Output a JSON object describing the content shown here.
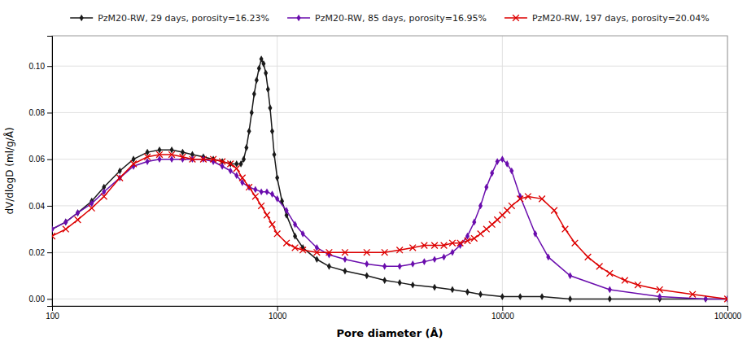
{
  "chart_data": {
    "type": "line",
    "xlabel": "Pore diameter  (Å)",
    "ylabel": "dV/dlogD  (ml/g/Å)",
    "log": "x",
    "grid": true,
    "legend": "top",
    "xlim": [
      100,
      100000
    ],
    "ylim": [
      -0.003,
      0.113
    ],
    "xticks": [
      100,
      1000,
      10000,
      100000
    ],
    "yticks": [
      {
        "value": 0.0,
        "label": "0.00"
      },
      {
        "value": 0.02,
        "label": "0.02"
      },
      {
        "value": 0.04,
        "label": "0.04"
      },
      {
        "value": 0.06,
        "label": "0.06"
      },
      {
        "value": 0.08,
        "label": "0.08"
      },
      {
        "value": 0.1,
        "label": "0.10"
      }
    ],
    "series": [
      {
        "name": "PzM20-RW, 29 days, porosity=16.23%",
        "color": "#1a1a1a",
        "marker": "diamond",
        "x": [
          100,
          115,
          130,
          150,
          170,
          200,
          230,
          265,
          300,
          340,
          380,
          420,
          470,
          520,
          570,
          620,
          660,
          690,
          710,
          730,
          750,
          770,
          790,
          810,
          830,
          850,
          870,
          890,
          910,
          930,
          950,
          970,
          1000,
          1050,
          1100,
          1200,
          1300,
          1500,
          1700,
          2000,
          2500,
          3000,
          3500,
          4000,
          5000,
          6000,
          7000,
          8000,
          10000,
          12000,
          15000,
          20000,
          30000,
          50000,
          80000,
          100000
        ],
        "values": [
          0.03,
          0.033,
          0.037,
          0.042,
          0.048,
          0.055,
          0.06,
          0.063,
          0.064,
          0.064,
          0.063,
          0.062,
          0.061,
          0.06,
          0.059,
          0.058,
          0.058,
          0.058,
          0.06,
          0.065,
          0.072,
          0.08,
          0.088,
          0.094,
          0.099,
          0.103,
          0.101,
          0.097,
          0.09,
          0.082,
          0.072,
          0.062,
          0.052,
          0.042,
          0.036,
          0.027,
          0.022,
          0.017,
          0.014,
          0.012,
          0.01,
          0.008,
          0.007,
          0.006,
          0.005,
          0.004,
          0.003,
          0.002,
          0.001,
          0.001,
          0.001,
          0.0,
          0.0,
          0.0,
          0.0,
          0.0
        ]
      },
      {
        "name": "PzM20-RW, 85 days, porosity=16.95%",
        "color": "#6A0DAD",
        "marker": "diamond",
        "x": [
          100,
          115,
          130,
          150,
          170,
          200,
          230,
          265,
          300,
          340,
          380,
          420,
          470,
          520,
          570,
          620,
          660,
          700,
          750,
          800,
          850,
          900,
          950,
          1000,
          1100,
          1200,
          1300,
          1500,
          1700,
          2000,
          2500,
          3000,
          3500,
          4000,
          4500,
          5000,
          5500,
          6000,
          6500,
          7000,
          7500,
          8000,
          8500,
          9000,
          9500,
          10000,
          10500,
          11000,
          12000,
          14000,
          16000,
          20000,
          30000,
          50000,
          80000,
          100000
        ],
        "values": [
          0.03,
          0.033,
          0.037,
          0.041,
          0.046,
          0.052,
          0.057,
          0.059,
          0.06,
          0.06,
          0.06,
          0.06,
          0.06,
          0.059,
          0.057,
          0.055,
          0.053,
          0.05,
          0.048,
          0.047,
          0.046,
          0.046,
          0.045,
          0.043,
          0.038,
          0.032,
          0.028,
          0.022,
          0.019,
          0.017,
          0.015,
          0.014,
          0.014,
          0.015,
          0.016,
          0.017,
          0.018,
          0.02,
          0.023,
          0.027,
          0.033,
          0.04,
          0.048,
          0.054,
          0.059,
          0.06,
          0.058,
          0.055,
          0.044,
          0.028,
          0.018,
          0.01,
          0.004,
          0.001,
          0.0,
          0.0
        ]
      },
      {
        "name": "PzM20-RW, 197 days, porosity=20.04%",
        "color": "#DD0000",
        "marker": "x",
        "x": [
          100,
          115,
          130,
          150,
          170,
          200,
          230,
          265,
          300,
          340,
          380,
          420,
          470,
          520,
          570,
          620,
          660,
          700,
          750,
          800,
          850,
          900,
          950,
          1000,
          1100,
          1200,
          1300,
          1500,
          1700,
          2000,
          2500,
          3000,
          3500,
          4000,
          4500,
          5000,
          5500,
          6000,
          6500,
          7000,
          7500,
          8000,
          8500,
          9000,
          9500,
          10000,
          10500,
          11000,
          12000,
          13000,
          15000,
          17000,
          19000,
          21000,
          24000,
          27000,
          30000,
          35000,
          40000,
          50000,
          70000,
          100000
        ],
        "values": [
          0.027,
          0.03,
          0.034,
          0.039,
          0.044,
          0.052,
          0.058,
          0.061,
          0.062,
          0.062,
          0.061,
          0.06,
          0.06,
          0.06,
          0.059,
          0.058,
          0.056,
          0.052,
          0.048,
          0.044,
          0.04,
          0.036,
          0.032,
          0.028,
          0.024,
          0.022,
          0.021,
          0.02,
          0.02,
          0.02,
          0.02,
          0.02,
          0.021,
          0.022,
          0.023,
          0.023,
          0.023,
          0.024,
          0.024,
          0.025,
          0.026,
          0.028,
          0.03,
          0.032,
          0.034,
          0.036,
          0.038,
          0.04,
          0.043,
          0.044,
          0.043,
          0.038,
          0.03,
          0.024,
          0.018,
          0.014,
          0.011,
          0.008,
          0.006,
          0.004,
          0.002,
          0.0
        ]
      }
    ]
  }
}
